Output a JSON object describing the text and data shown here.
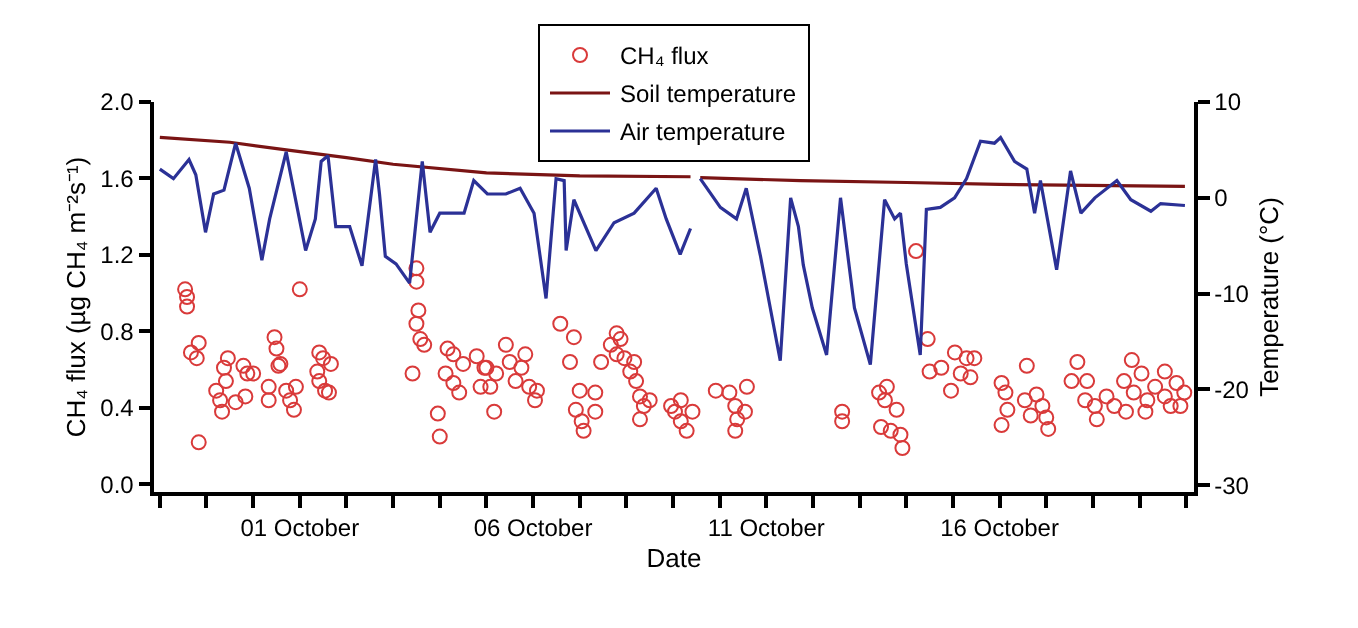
{
  "chart_data": {
    "type": "scatter",
    "xlabel": "Date",
    "ylabel": "CH₄ flux (µg CH₄ m⁻²s⁻¹)",
    "y2label": "Temperature (°C)",
    "xlim": [
      "--09-27T21:00",
      "--10-20T04:00"
    ],
    "xticks": [
      {
        "value": "--09-28",
        "label": null
      },
      {
        "value": "--09-29",
        "label": null
      },
      {
        "value": "--09-30",
        "label": null
      },
      {
        "value": "--10-01",
        "label": "01 October"
      },
      {
        "value": "--10-02",
        "label": null
      },
      {
        "value": "--10-03",
        "label": null
      },
      {
        "value": "--10-04",
        "label": null
      },
      {
        "value": "--10-05",
        "label": null
      },
      {
        "value": "--10-06",
        "label": "06 October"
      },
      {
        "value": "--10-07",
        "label": null
      },
      {
        "value": "--10-08",
        "label": null
      },
      {
        "value": "--10-09",
        "label": null
      },
      {
        "value": "--10-10",
        "label": null
      },
      {
        "value": "--10-11",
        "label": "11 October"
      },
      {
        "value": "--10-12",
        "label": null
      },
      {
        "value": "--10-13",
        "label": null
      },
      {
        "value": "--10-14",
        "label": null
      },
      {
        "value": "--10-15",
        "label": null
      },
      {
        "value": "--10-16",
        "label": "16 October"
      },
      {
        "value": "--10-17",
        "label": null
      },
      {
        "value": "--10-18",
        "label": null
      },
      {
        "value": "--10-19",
        "label": null
      },
      {
        "value": "--10-20",
        "label": null
      }
    ],
    "ylim": [
      -0.04,
      2.0
    ],
    "yticks": [
      {
        "value": 0,
        "label": "0.0"
      },
      {
        "value": 0.4,
        "label": "0.4"
      },
      {
        "value": 0.8,
        "label": "0.8"
      },
      {
        "value": 1.2,
        "label": "1.2"
      },
      {
        "value": 1.6,
        "label": "1.6"
      },
      {
        "value": 2.0,
        "label": "2.0"
      }
    ],
    "y2lim": [
      -30.7,
      10
    ],
    "y2ticks": [
      -30,
      -20,
      -10,
      0,
      10
    ],
    "legend": "top",
    "series": [
      {
        "name": "CH₄ flux",
        "marker": "circle",
        "color": "#d93a3a",
        "x": [
          "--09-28T13:00",
          "--09-28T14:00",
          "--09-28T14:00",
          "--09-28T16:00",
          "--09-28T19:00",
          "--09-28T20:00",
          "--09-28T20:00",
          "--09-29T05:00",
          "--09-29T07:00",
          "--09-29T08:00",
          "--09-29T09:00",
          "--09-29T10:00",
          "--09-29T11:00",
          "--09-29T15:00",
          "--09-29T19:00",
          "--09-29T20:00",
          "--09-29T21:00",
          "--09-30T00:00",
          "--09-30T08:00",
          "--09-30T08:00",
          "--09-30T11:00",
          "--09-30T12:00",
          "--09-30T13:00",
          "--09-30T14:00",
          "--09-30T17:00",
          "--09-30T19:00",
          "--09-30T21:00",
          "--09-30T22:00",
          "--10-01T00:00",
          "--10-01T09:00",
          "--10-01T10:00",
          "--10-01T10:00",
          "--10-01T12:00",
          "--10-01T13:00",
          "--10-01T15:00",
          "--10-01T16:00",
          "--10-03T10:00",
          "--10-03T12:00",
          "--10-03T12:00",
          "--10-03T12:00",
          "--10-03T13:00",
          "--10-03T14:00",
          "--10-03T16:00",
          "--10-03T23:00",
          "--10-04T00:00",
          "--10-04T03:00",
          "--10-04T04:00",
          "--10-04T07:00",
          "--10-04T07:00",
          "--10-04T10:00",
          "--10-04T12:00",
          "--10-04T19:00",
          "--10-04T21:00",
          "--10-04T23:00",
          "--10-05T00:00",
          "--10-05T02:00",
          "--10-05T04:00",
          "--10-05T05:00",
          "--10-05T10:00",
          "--10-05T12:00",
          "--10-05T15:00",
          "--10-05T18:00",
          "--10-05T20:00",
          "--10-05T22:00",
          "--10-06T01:00",
          "--10-06T02:00",
          "--10-06T14:00",
          "--10-06T19:00",
          "--10-06T21:00",
          "--10-06T22:00",
          "--10-07T00:00",
          "--10-07T01:00",
          "--10-07T02:00",
          "--10-07T08:00",
          "--10-07T08:00",
          "--10-07T11:00",
          "--10-07T16:00",
          "--10-07T19:00",
          "--10-07T19:00",
          "--10-07T21:00",
          "--10-07T23:00",
          "--10-08T02:00",
          "--10-08T04:00",
          "--10-08T05:00",
          "--10-08T07:00",
          "--10-08T07:00",
          "--10-08T09:00",
          "--10-08T12:00",
          "--10-08T23:00",
          "--10-09T01:00",
          "--10-09T04:00",
          "--10-09T04:00",
          "--10-09T07:00",
          "--10-09T10:00",
          "--10-09T22:00",
          "--10-10T05:00",
          "--10-10T08:00",
          "--10-10T08:00",
          "--10-10T09:00",
          "--10-10T13:00",
          "--10-10T14:00",
          "--10-12T15:00",
          "--10-12T15:00",
          "--10-13T10:00",
          "--10-13T11:00",
          "--10-13T13:00",
          "--10-13T14:00",
          "--10-13T16:00",
          "--10-13T19:00",
          "--10-13T21:00",
          "--10-13T22:00",
          "--10-14T05:00",
          "--10-14T11:00",
          "--10-14T12:00",
          "--10-14T18:00",
          "--10-14T23:00",
          "--10-15T01:00",
          "--10-15T04:00",
          "--10-15T07:00",
          "--10-15T09:00",
          "--10-15T11:00",
          "--10-16T01:00",
          "--10-16T01:00",
          "--10-16T03:00",
          "--10-16T04:00",
          "--10-16T13:00",
          "--10-16T14:00",
          "--10-16T16:00",
          "--10-16T19:00",
          "--10-16T22:00",
          "--10-17T00:00",
          "--10-17T01:00",
          "--10-17T13:00",
          "--10-17T16:00",
          "--10-17T20:00",
          "--10-17T21:00",
          "--10-18T01:00",
          "--10-18T02:00",
          "--10-18T07:00",
          "--10-18T11:00",
          "--10-18T16:00",
          "--10-18T17:00",
          "--10-18T20:00",
          "--10-18T21:00",
          "--10-19T01:00",
          "--10-19T03:00",
          "--10-19T04:00",
          "--10-19T08:00",
          "--10-19T13:00",
          "--10-19T13:00",
          "--10-19T16:00",
          "--10-19T19:00",
          "--10-19T21:00",
          "--10-19T23:00"
        ],
        "values": [
          1.02,
          0.98,
          0.93,
          0.69,
          0.66,
          0.74,
          0.22,
          0.49,
          0.44,
          0.38,
          0.61,
          0.54,
          0.66,
          0.43,
          0.62,
          0.46,
          0.58,
          0.58,
          0.51,
          0.44,
          0.77,
          0.71,
          0.62,
          0.63,
          0.49,
          0.44,
          0.39,
          0.51,
          1.02,
          0.59,
          0.69,
          0.54,
          0.66,
          0.49,
          0.48,
          0.63,
          0.58,
          1.13,
          1.06,
          0.84,
          0.91,
          0.76,
          0.73,
          0.37,
          0.25,
          0.58,
          0.71,
          0.53,
          0.68,
          0.48,
          0.63,
          0.67,
          0.51,
          0.61,
          0.61,
          0.51,
          0.38,
          0.58,
          0.73,
          0.64,
          0.54,
          0.61,
          0.68,
          0.51,
          0.44,
          0.49,
          0.84,
          0.64,
          0.77,
          0.39,
          0.49,
          0.33,
          0.28,
          0.48,
          0.38,
          0.64,
          0.73,
          0.79,
          0.68,
          0.76,
          0.66,
          0.59,
          0.64,
          0.54,
          0.46,
          0.34,
          0.41,
          0.44,
          0.41,
          0.38,
          0.44,
          0.33,
          0.28,
          0.38,
          0.49,
          0.48,
          0.41,
          0.28,
          0.34,
          0.38,
          0.51,
          0.38,
          0.33,
          0.48,
          0.3,
          0.44,
          0.51,
          0.28,
          0.39,
          0.26,
          0.19,
          1.22,
          0.76,
          0.59,
          0.61,
          0.49,
          0.69,
          0.58,
          0.66,
          0.56,
          0.66,
          0.53,
          0.31,
          0.48,
          0.39,
          0.44,
          0.62,
          0.36,
          0.47,
          0.41,
          0.35,
          0.29,
          0.54,
          0.64,
          0.44,
          0.54,
          0.41,
          0.34,
          0.46,
          0.41,
          0.54,
          0.38,
          0.65,
          0.48,
          0.58,
          0.38,
          0.44,
          0.51,
          0.59,
          0.46,
          0.41,
          0.53,
          0.41,
          0.48
        ]
      },
      {
        "name": "Soil temperature",
        "type": "line",
        "axis": "y2",
        "color": "#7a1414",
        "line_style": "solid",
        "x": [
          "--09-28T00:00",
          "--09-29T12:00",
          "--09-30T17:00",
          "--10-02T00:00",
          "--10-03T00:00",
          "--10-05T00:00",
          "--10-07T00:00",
          "--10-09T09:00",
          "--10-09T11:00",
          "--10-09T14:00",
          "--10-11T17:30",
          "--10-14T00:00",
          "--10-16T00:00",
          "--10-19T23:20"
        ],
        "values": [
          6.3,
          5.8,
          5.0,
          4.2,
          3.5,
          2.6,
          2.3,
          2.2,
          null,
          2.1,
          1.8,
          1.6,
          1.4,
          1.2
        ]
      },
      {
        "name": "Air temperature",
        "type": "line",
        "axis": "y2",
        "color": "#2b3196",
        "line_style": "solid",
        "x": [
          "--09-28T00:00",
          "--09-28T07:00",
          "--09-28T15:00",
          "--09-28T18:30",
          "--09-28T23:30",
          "--09-29T03:40",
          "--09-29T09:00",
          "--09-29T15:00",
          "--09-29T22:00",
          "--09-30T04:30",
          "--09-30T08:30",
          "--09-30T17:00",
          "--10-01T03:00",
          "--10-01T08:00",
          "--10-01T11:00",
          "--10-01T14:30",
          "--10-01T18:30",
          "--10-02T01:40",
          "--10-02T08:00",
          "--10-02T15:00",
          "--10-02T17:00",
          "--10-02T20:00",
          "--10-03T01:30",
          "--10-03T08:30",
          "--10-03T15:00",
          "--10-03T19:00",
          "--10-04T00:00",
          "--10-04T12:30",
          "--10-04T17:30",
          "--10-05T00:30",
          "--10-05T10:00",
          "--10-05T17:20",
          "--10-06T00:30",
          "--10-06T06:40",
          "--10-06T11:50",
          "--10-06T16:00",
          "--10-06T17:00",
          "--10-06T21:00",
          "--10-07T08:20",
          "--10-07T17:40",
          "--10-08T04:00",
          "--10-08T15:20",
          "--10-08T20:30",
          "--10-09T03:40",
          "--10-09T09:00",
          "--10-09T11:00",
          "--10-09T14:00",
          "--10-10T00:20",
          "--10-10T08:40",
          "--10-10T13:40",
          "--10-10T21:00",
          "--10-11T07:10",
          "--10-11T12:30",
          "--10-11T16:30",
          "--10-11T19:00",
          "--10-11T23:40",
          "--10-12T07:00",
          "--10-12T14:10",
          "--10-12T21:20",
          "--10-13T05:30",
          "--10-13T12:50",
          "--10-13T18:00",
          "--10-13T21:00",
          "--10-14T00:00",
          "--10-14T07:10",
          "--10-14T10:20",
          "--10-14T17:30",
          "--10-15T00:50",
          "--10-15T07:00",
          "--10-15T14:10",
          "--10-15T21:20",
          "--10-16T00:30",
          "--10-16T07:40",
          "--10-16T14:00",
          "--10-16T18:00",
          "--10-16T21:00",
          "--10-17T05:20",
          "--10-17T12:30",
          "--10-17T17:50",
          "--10-18T01:00",
          "--10-18T12:20",
          "--10-18T19:30",
          "--10-19T05:50",
          "--10-19T10:50",
          "--10-19T23:20"
        ],
        "values": [
          3.0,
          2.0,
          4.0,
          2.4,
          -3.6,
          0.4,
          0.8,
          5.7,
          1.0,
          -6.5,
          -2.2,
          4.8,
          -5.5,
          -2.2,
          3.8,
          4.4,
          -3.0,
          -3.0,
          -7.1,
          4.0,
          0.4,
          -6.1,
          -6.9,
          -8.9,
          3.8,
          -3.6,
          -1.6,
          -1.6,
          1.8,
          0.4,
          0.4,
          1.0,
          -1.6,
          -10.5,
          2.0,
          1.8,
          -5.5,
          -0.2,
          -5.5,
          -2.6,
          -1.6,
          1.0,
          -2.2,
          -5.9,
          -3.2,
          null,
          2.0,
          -1.0,
          -2.2,
          1.0,
          -6.1,
          -17.0,
          0,
          -3.0,
          -7.0,
          -11.5,
          -16.4,
          0,
          -11.5,
          -17.4,
          -0.2,
          -2.2,
          -1.6,
          -6.9,
          -16.4,
          -1.2,
          -1.0,
          0,
          2.0,
          5.9,
          5.7,
          6.3,
          3.8,
          3.0,
          -1.6,
          1.8,
          -7.5,
          2.8,
          -1.6,
          0,
          1.8,
          -0.2,
          -1.4,
          -0.6,
          -0.8
        ]
      }
    ]
  }
}
